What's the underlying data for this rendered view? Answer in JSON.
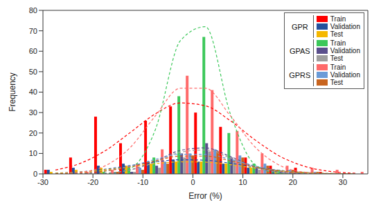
{
  "chart_data": {
    "type": "histogram",
    "x_label": "Error (%)",
    "y_label": "Frequency",
    "bins": [
      -30,
      -25,
      -20,
      -15,
      -10,
      -5,
      0,
      5,
      10,
      15,
      20,
      25,
      30,
      35
    ],
    "xlim": [
      -30,
      35
    ],
    "xticks": [
      -30,
      -20,
      -10,
      0,
      10,
      20,
      30
    ],
    "ylim": [
      0,
      80
    ],
    "yticks": [
      0,
      10,
      20,
      30,
      40,
      50,
      60,
      70,
      80
    ],
    "legend": "upper right",
    "series": [
      {
        "group": "GPR",
        "name": "Train",
        "color": "#ff0000",
        "values": [
          2,
          8,
          28,
          15,
          26,
          33,
          30,
          23,
          8,
          4,
          3,
          1,
          0
        ],
        "fit_values": [
          1.9,
          5.2,
          11.4,
          20.3,
          29.4,
          34.7,
          33.3,
          26.0,
          16.5,
          8.5,
          3.6,
          1.2,
          0.3
        ]
      },
      {
        "group": "GPR",
        "name": "Validation",
        "color": "#24519c",
        "values": [
          2,
          3,
          4,
          5,
          6,
          7,
          6,
          5,
          3,
          2,
          1,
          0,
          0
        ],
        "fit_values": [
          0.4,
          1.0,
          2.3,
          4.1,
          5.9,
          6.9,
          6.7,
          5.2,
          3.3,
          1.7,
          0.7,
          0.2,
          0.1
        ]
      },
      {
        "group": "GPR",
        "name": "Test",
        "color": "#f5b800",
        "values": [
          1,
          2,
          3,
          4,
          5,
          6,
          6,
          5,
          3,
          2,
          1,
          0,
          0
        ],
        "fit_values": [
          0.3,
          0.9,
          2.0,
          3.5,
          5.0,
          5.9,
          5.7,
          4.5,
          2.8,
          1.5,
          0.6,
          0.2,
          0.1
        ]
      },
      {
        "group": "GPAS",
        "name": "Train",
        "color": "#3cc85a",
        "values": [
          0,
          0,
          1,
          3,
          8,
          38,
          67,
          20,
          5,
          2,
          1,
          0,
          0
        ],
        "fit_values": [
          0,
          0,
          0.1,
          2.7,
          21.7,
          65.2,
          72.0,
          29.3,
          4.4,
          0.2,
          0,
          0,
          0
        ]
      },
      {
        "group": "GPAS",
        "name": "Validation",
        "color": "#5a4f8c",
        "values": [
          0,
          0,
          0,
          1,
          4,
          10,
          15,
          8,
          3,
          1,
          0,
          0,
          0
        ],
        "fit_values": [
          0,
          0.1,
          0.4,
          2.0,
          6.2,
          11.5,
          12.7,
          8.5,
          3.4,
          0.8,
          0.1,
          0,
          0
        ]
      },
      {
        "group": "GPAS",
        "name": "Test",
        "color": "#9e9e9e",
        "values": [
          0,
          0,
          0,
          1,
          3,
          8,
          11,
          7,
          2,
          1,
          0,
          0,
          0
        ],
        "fit_values": [
          0,
          0,
          0.4,
          1.9,
          5.7,
          10.6,
          11.7,
          7.8,
          3.1,
          0.7,
          0.1,
          0,
          0
        ]
      },
      {
        "group": "GPRS",
        "name": "Train",
        "color": "#ff6b6b",
        "values": [
          0,
          1,
          2,
          5,
          12,
          48,
          41,
          21,
          10,
          4,
          3,
          2,
          1
        ],
        "fit_values": [
          0.1,
          0.8,
          4.0,
          13.0,
          28.4,
          41.9,
          41.9,
          28.4,
          13.0,
          4.0,
          0.8,
          0.1,
          0
        ]
      },
      {
        "group": "GPRS",
        "name": "Validation",
        "color": "#6a9bd8",
        "values": [
          0,
          0,
          1,
          3,
          6,
          10,
          12,
          9,
          5,
          2,
          1,
          0,
          0
        ],
        "fit_values": [
          0.1,
          0.4,
          1.5,
          3.8,
          7.1,
          9.6,
          9.6,
          7.1,
          3.8,
          1.5,
          0.4,
          0.1,
          0
        ]
      },
      {
        "group": "GPRS",
        "name": "Test",
        "color": "#c8641e",
        "values": [
          0,
          0,
          1,
          2,
          5,
          9,
          11,
          8,
          4,
          2,
          1,
          0,
          0
        ],
        "fit_values": [
          0.1,
          0.4,
          1.4,
          3.4,
          6.4,
          8.7,
          8.7,
          6.4,
          3.4,
          1.4,
          0.4,
          0.1,
          0
        ]
      }
    ]
  }
}
